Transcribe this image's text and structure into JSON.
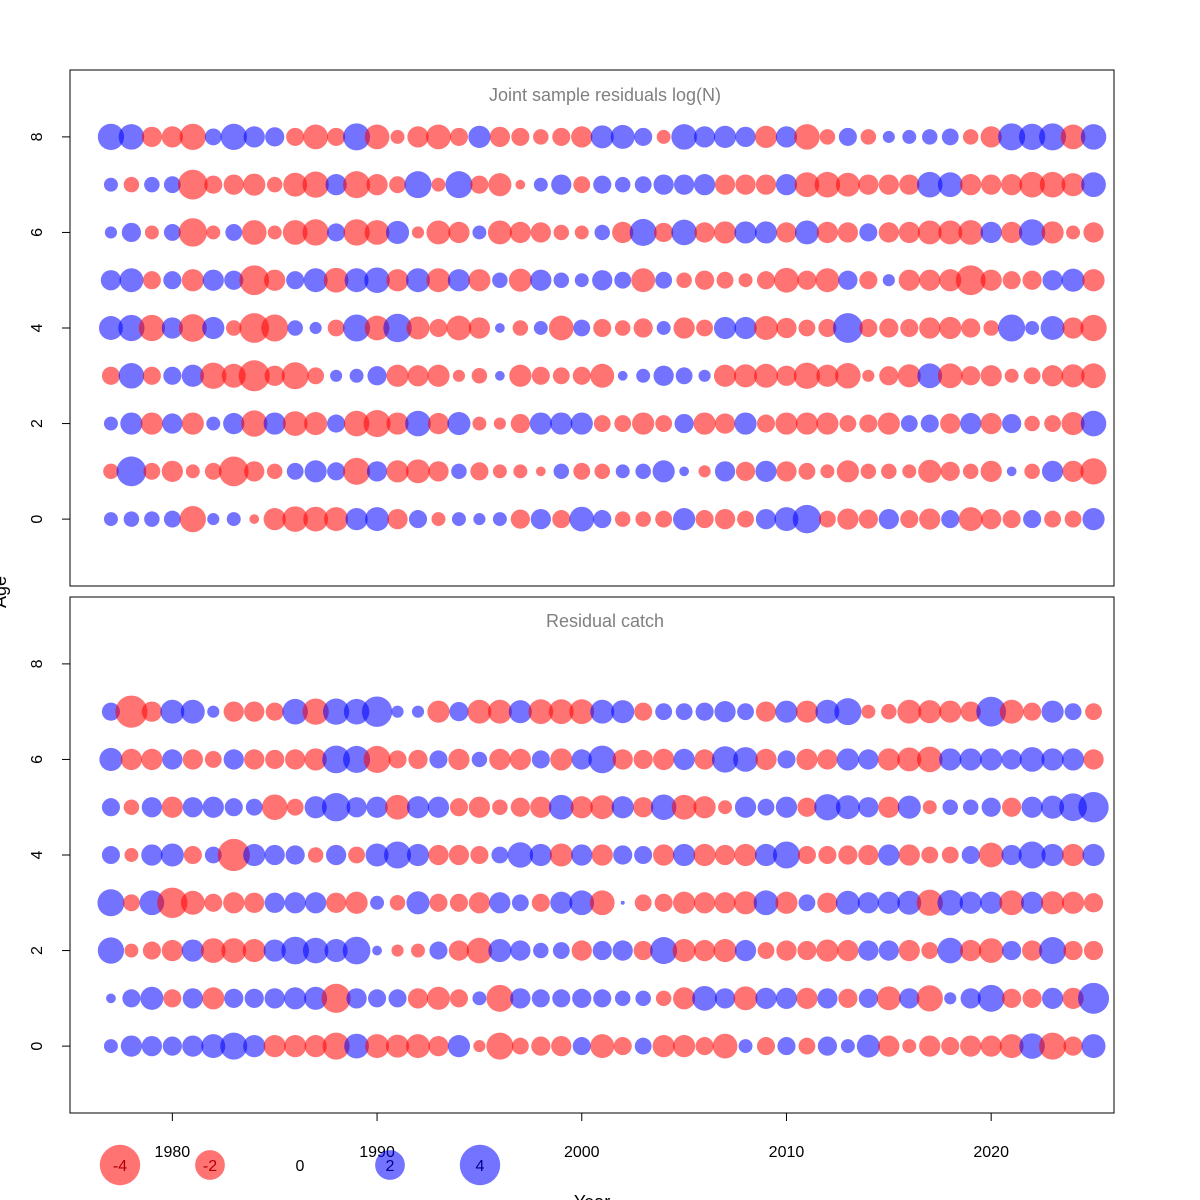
{
  "chart_data": {
    "type": "scatter",
    "xlabel": "Year",
    "ylabel": "Age",
    "xticks": [
      1980,
      1990,
      2000,
      2010,
      2020
    ],
    "yticks": [
      0,
      2,
      4,
      6,
      8
    ],
    "xlim": [
      1975,
      2026
    ],
    "colors": {
      "negative": "#ff0000",
      "positive": "#0000ff"
    },
    "legend": {
      "position": "bottom-left",
      "values": [
        -4,
        -2,
        0,
        2,
        4
      ],
      "labels": [
        "-4",
        "-2",
        "0",
        "2",
        "4"
      ]
    },
    "panels": [
      {
        "title": "Joint sample residuals log(N)",
        "ylim": [
          -1.4,
          9.4
        ],
        "series_opacity": 0.55,
        "start_year": 1977,
        "ages": [
          0,
          1,
          2,
          3,
          4,
          5,
          6,
          7,
          8
        ],
        "residuals": [
          [
            0.3,
            -0.4,
            0.3,
            -0.6,
            1.2,
            0.8,
            0.2,
            0.3,
            1.5
          ],
          [
            0.4,
            2.0,
            1.0,
            1.4,
            1.5,
            1.2,
            0.7,
            -0.4,
            1.4
          ],
          [
            0.4,
            -0.5,
            -1.0,
            -0.6,
            -1.5,
            -0.6,
            -0.3,
            0.4,
            -0.8
          ],
          [
            0.5,
            -0.9,
            0.8,
            0.6,
            0.9,
            0.6,
            0.5,
            0.5,
            -0.9
          ],
          [
            -1.5,
            -0.3,
            -1.0,
            1.0,
            -1.7,
            -1.0,
            -1.8,
            -2.0,
            -1.5
          ],
          [
            0.2,
            -0.5,
            0.3,
            -1.5,
            1.0,
            0.9,
            -0.3,
            -0.6,
            0.5
          ],
          [
            0.3,
            -2.0,
            0.9,
            -1.2,
            -0.4,
            0.7,
            0.5,
            -0.8,
            1.5
          ],
          [
            -0.1,
            -0.8,
            -1.5,
            -2.2,
            -2.0,
            -2.0,
            -1.3,
            -1.0,
            0.9
          ],
          [
            -1.0,
            -0.4,
            1.0,
            -0.8,
            -1.6,
            -0.9,
            -0.3,
            -0.4,
            0.7
          ],
          [
            -1.4,
            0.5,
            -1.3,
            -1.6,
            0.4,
            0.6,
            -1.3,
            -1.2,
            -0.6
          ],
          [
            -1.3,
            1.0,
            -1.1,
            -0.5,
            0.2,
            1.2,
            -1.5,
            -1.5,
            -1.3
          ],
          [
            -1.2,
            0.6,
            0.6,
            0.2,
            -0.5,
            -1.3,
            0.6,
            0.9,
            -0.6
          ],
          [
            1.0,
            -1.6,
            -1.4,
            0.3,
            1.6,
            1.2,
            -1.5,
            -1.6,
            1.6
          ],
          [
            1.2,
            0.8,
            -1.6,
            0.7,
            -1.3,
            1.4,
            -1.3,
            -0.9,
            -1.3
          ],
          [
            -0.8,
            -1.0,
            -1.0,
            -1.0,
            1.8,
            -1.0,
            1.1,
            -0.5,
            -0.3
          ],
          [
            0.6,
            -1.2,
            1.4,
            -0.9,
            -1.1,
            1.2,
            -0.2,
            1.6,
            -0.9
          ],
          [
            -0.3,
            -0.8,
            -0.9,
            -1.0,
            -0.6,
            -1.2,
            -1.2,
            -0.3,
            -1.3
          ],
          [
            0.3,
            0.4,
            1.1,
            -0.2,
            -1.3,
            1.0,
            -0.9,
            1.6,
            -0.6
          ],
          [
            0.2,
            -0.6,
            -0.3,
            -0.4,
            -0.9,
            -1.0,
            0.3,
            -0.6,
            1.0
          ],
          [
            0.3,
            -0.3,
            -0.2,
            0.1,
            0.1,
            0.4,
            -1.2,
            -1.1,
            -0.8
          ],
          [
            -0.7,
            -0.3,
            -0.7,
            -1.0,
            -0.4,
            -1.1,
            -0.9,
            -0.1,
            -0.6
          ],
          [
            0.8,
            -0.1,
            1.0,
            -0.6,
            0.3,
            0.9,
            -0.8,
            0.3,
            -0.4
          ],
          [
            -0.6,
            0.4,
            1.0,
            -0.5,
            -1.3,
            0.4,
            -0.4,
            0.8,
            -0.6
          ],
          [
            1.3,
            -0.5,
            1.0,
            -0.6,
            0.5,
            0.3,
            -0.3,
            -0.5,
            -0.9
          ],
          [
            0.6,
            -0.4,
            -0.5,
            -1.2,
            -0.6,
            0.8,
            0.4,
            0.6,
            1.1
          ],
          [
            -0.4,
            0.3,
            -0.5,
            0.1,
            -0.4,
            0.5,
            -0.9,
            0.4,
            1.2
          ],
          [
            -0.4,
            0.4,
            -1.0,
            0.3,
            -0.7,
            -1.2,
            1.6,
            0.5,
            0.6
          ],
          [
            -0.5,
            1.0,
            -0.5,
            0.8,
            0.3,
            0.5,
            -0.7,
            0.8,
            -0.3
          ],
          [
            1.0,
            0.1,
            0.7,
            0.5,
            -0.9,
            -0.4,
            1.4,
            0.8,
            1.4
          ],
          [
            -0.6,
            -0.2,
            -1.0,
            0.2,
            -0.5,
            -0.7,
            -0.8,
            0.9,
            0.9
          ],
          [
            -0.8,
            0.8,
            -0.8,
            -1.0,
            1.0,
            -0.5,
            -1.0,
            -0.8,
            1.0
          ],
          [
            -0.5,
            -0.7,
            1.0,
            -1.1,
            1.0,
            -0.3,
            1.0,
            -0.8,
            0.8
          ],
          [
            0.8,
            0.9,
            -0.6,
            -1.2,
            -1.2,
            -0.6,
            1.0,
            -0.8,
            -1.0
          ],
          [
            1.2,
            -0.8,
            -1.0,
            -0.8,
            -0.8,
            -1.3,
            -0.8,
            0.9,
            0.9
          ],
          [
            1.8,
            -0.5,
            -1.0,
            -1.5,
            -0.5,
            -0.7,
            1.2,
            -1.3,
            -1.4
          ],
          [
            -0.5,
            -0.3,
            -1.0,
            -1.0,
            -0.6,
            -1.2,
            -0.9,
            -1.4,
            -0.4
          ],
          [
            -0.9,
            -1.0,
            -0.5,
            -1.4,
            2.0,
            0.7,
            -0.8,
            -1.2,
            0.6
          ],
          [
            -0.7,
            -0.4,
            -0.6,
            -0.2,
            -0.6,
            -0.6,
            0.6,
            -0.8,
            -0.4
          ],
          [
            0.8,
            -0.4,
            -1.0,
            -0.7,
            -0.7,
            0.2,
            -0.8,
            -0.8,
            0.2
          ],
          [
            -0.6,
            -0.3,
            0.5,
            -1.1,
            -0.6,
            -0.9,
            -0.9,
            -0.8,
            0.3
          ],
          [
            -0.9,
            -1.1,
            0.6,
            1.3,
            -0.9,
            -0.9,
            -1.2,
            1.4,
            0.4
          ],
          [
            0.6,
            -0.7,
            -0.8,
            -1.3,
            -1.0,
            -1.0,
            -1.2,
            1.3,
            0.5
          ],
          [
            -1.2,
            -0.4,
            0.9,
            -0.7,
            -0.7,
            -2.0,
            -1.3,
            -0.9,
            -0.4
          ],
          [
            -0.8,
            -0.9,
            -0.9,
            -0.9,
            -0.4,
            -0.9,
            0.9,
            -0.8,
            -0.9
          ],
          [
            -0.6,
            0.1,
            0.7,
            -0.3,
            1.6,
            -0.6,
            -0.9,
            -0.9,
            1.6
          ],
          [
            0.6,
            -0.4,
            -0.4,
            -0.5,
            0.3,
            -0.7,
            1.5,
            -1.4,
            1.5
          ],
          [
            -0.5,
            0.9,
            -0.5,
            -0.9,
            1.2,
            0.8,
            -1.0,
            -1.4,
            1.6
          ],
          [
            -0.5,
            -0.9,
            -1.1,
            -1.1,
            -0.9,
            1.1,
            -0.3,
            -1.1,
            -1.3
          ],
          [
            1.0,
            -1.5,
            1.4,
            -1.3,
            -1.5,
            -1.0,
            -0.8,
            1.3,
            1.4
          ]
        ]
      },
      {
        "title": "Residual catch",
        "ylim": [
          -1.4,
          9.4
        ],
        "series_opacity": 0.55,
        "start_year": 1977,
        "ages": [
          0,
          1,
          2,
          3,
          4,
          5,
          6,
          7
        ],
        "residuals": [
          [
            0.3,
            0.1,
            1.5,
            1.6,
            0.6,
            0.6,
            1.1,
            0.6
          ],
          [
            0.9,
            0.6,
            -0.3,
            -0.5,
            -0.3,
            -0.4,
            -0.9,
            -2.4
          ],
          [
            0.8,
            1.1,
            -0.6,
            1.3,
            0.9,
            0.8,
            -0.9,
            -0.8
          ],
          [
            0.7,
            -0.6,
            -0.9,
            -2.1,
            1.1,
            -0.9,
            0.8,
            1.2
          ],
          [
            0.9,
            0.8,
            1.0,
            -1.2,
            -0.6,
            0.8,
            -0.8,
            1.2
          ],
          [
            1.2,
            -1.0,
            -1.3,
            -0.6,
            0.5,
            0.9,
            -0.5,
            0.2
          ],
          [
            1.6,
            0.7,
            -1.3,
            -0.9,
            -2.4,
            0.6,
            0.8,
            -0.8
          ],
          [
            1.0,
            0.7,
            -1.1,
            -0.8,
            1.0,
            0.5,
            -0.8,
            -0.8
          ],
          [
            -1.0,
            0.8,
            1.0,
            0.8,
            0.8,
            -1.4,
            -0.7,
            -0.6
          ],
          [
            -1.0,
            1.0,
            1.7,
            0.9,
            0.7,
            -0.5,
            -0.8,
            1.4
          ],
          [
            -1.0,
            1.1,
            1.4,
            0.9,
            -0.4,
            1.0,
            -1.0,
            -1.5
          ],
          [
            -1.6,
            -1.9,
            1.1,
            -0.8,
            0.8,
            1.8,
            1.7,
            1.5
          ],
          [
            1.3,
            0.8,
            1.7,
            -1.0,
            -0.5,
            0.8,
            1.6,
            1.4
          ],
          [
            -1.2,
            0.6,
            0.1,
            0.3,
            1.1,
            0.9,
            -1.6,
            2.1
          ],
          [
            -1.1,
            0.6,
            -0.2,
            -0.4,
            1.6,
            -1.3,
            -0.6,
            0.2
          ],
          [
            -1.2,
            -0.8,
            -0.3,
            1.1,
            1.0,
            1.0,
            -0.7,
            0.2
          ],
          [
            -0.8,
            -1.1,
            0.6,
            -0.6,
            -0.8,
            0.9,
            0.6,
            -1.0
          ],
          [
            1.0,
            -0.6,
            -0.8,
            -0.6,
            -0.8,
            -0.6,
            -0.9,
            0.7
          ],
          [
            -0.2,
            0.3,
            -1.4,
            -0.9,
            -0.6,
            -0.9,
            0.4,
            -1.2
          ],
          [
            -1.6,
            -1.6,
            1.1,
            0.9,
            0.5,
            -0.4,
            -0.9,
            -1.2
          ],
          [
            -0.5,
            0.8,
            0.8,
            0.5,
            1.4,
            -0.7,
            -0.9,
            1.1
          ],
          [
            -0.7,
            0.6,
            0.4,
            -0.6,
            1.0,
            -0.9,
            0.6,
            -1.3
          ],
          [
            -0.8,
            0.6,
            0.5,
            1.0,
            -1.1,
            1.3,
            -1.0,
            -1.3
          ],
          [
            0.6,
            0.7,
            -0.8,
            1.3,
            0.9,
            -1.0,
            0.8,
            -1.3
          ],
          [
            -1.2,
            0.6,
            0.7,
            -1.3,
            -0.9,
            -1.2,
            1.7,
            1.2
          ],
          [
            -0.6,
            0.4,
            0.8,
            0.0,
            0.7,
            1.0,
            -0.8,
            1.1
          ],
          [
            0.5,
            0.4,
            -0.7,
            -0.5,
            0.6,
            -0.8,
            -0.7,
            -0.6
          ],
          [
            -1.0,
            -0.4,
            1.6,
            -0.6,
            -0.9,
            1.4,
            -0.9,
            0.5
          ],
          [
            -1.0,
            -1.0,
            -1.1,
            -1.0,
            1.0,
            -1.3,
            0.9,
            0.5
          ],
          [
            -0.6,
            1.3,
            -0.9,
            -0.9,
            -1.0,
            -1.0,
            -0.8,
            0.6
          ],
          [
            -1.3,
            0.8,
            -1.1,
            -0.9,
            -0.8,
            -0.3,
            1.5,
            0.9
          ],
          [
            0.3,
            -1.2,
            0.9,
            -1.1,
            -1.0,
            0.9,
            1.3,
            0.5
          ],
          [
            -0.6,
            0.9,
            -0.5,
            1.3,
            1.0,
            0.5,
            -0.9,
            -0.8
          ],
          [
            0.6,
            0.9,
            -0.8,
            -1.0,
            1.6,
            0.9,
            0.6,
            1.0
          ],
          [
            -0.5,
            -0.9,
            -0.7,
            0.5,
            -0.6,
            -0.7,
            -0.9,
            -1.0
          ],
          [
            0.7,
            0.8,
            -1.0,
            -0.8,
            -0.6,
            1.5,
            -0.8,
            1.2
          ],
          [
            0.3,
            -0.7,
            -0.9,
            1.2,
            -0.7,
            1.2,
            1.0,
            1.6
          ],
          [
            1.1,
            0.7,
            0.8,
            0.9,
            -0.8,
            0.8,
            0.8,
            -0.3
          ],
          [
            -0.9,
            -1.2,
            0.8,
            1.0,
            0.9,
            -0.9,
            -1.0,
            -0.4
          ],
          [
            -0.3,
            0.8,
            -0.9,
            1.2,
            -0.9,
            1.1,
            -1.2,
            -1.2
          ],
          [
            -0.9,
            -1.5,
            -0.5,
            -1.5,
            -0.5,
            -0.3,
            -1.4,
            -1.1
          ],
          [
            -0.6,
            0.2,
            1.4,
            1.4,
            -0.5,
            0.4,
            1.0,
            -1.0
          ],
          [
            -0.9,
            0.8,
            -0.9,
            1.0,
            0.6,
            0.4,
            1.0,
            -0.8
          ],
          [
            -0.9,
            1.6,
            -1.3,
            1.0,
            -1.3,
            0.7,
            1.0,
            2.0
          ],
          [
            -1.2,
            -0.7,
            0.7,
            -1.3,
            0.8,
            -0.7,
            0.8,
            -1.2
          ],
          [
            1.4,
            -0.7,
            -0.8,
            1.0,
            1.6,
            0.9,
            1.3,
            -0.6
          ],
          [
            -1.6,
            0.9,
            1.6,
            -1.1,
            1.0,
            1.1,
            1.0,
            1.0
          ],
          [
            -0.7,
            -0.9,
            -0.7,
            -1.0,
            -1.0,
            1.7,
            1.0,
            0.5
          ],
          [
            1.2,
            2.2,
            -0.7,
            -0.7,
            1.0,
            2.1,
            -0.8,
            -0.5
          ]
        ]
      }
    ]
  }
}
